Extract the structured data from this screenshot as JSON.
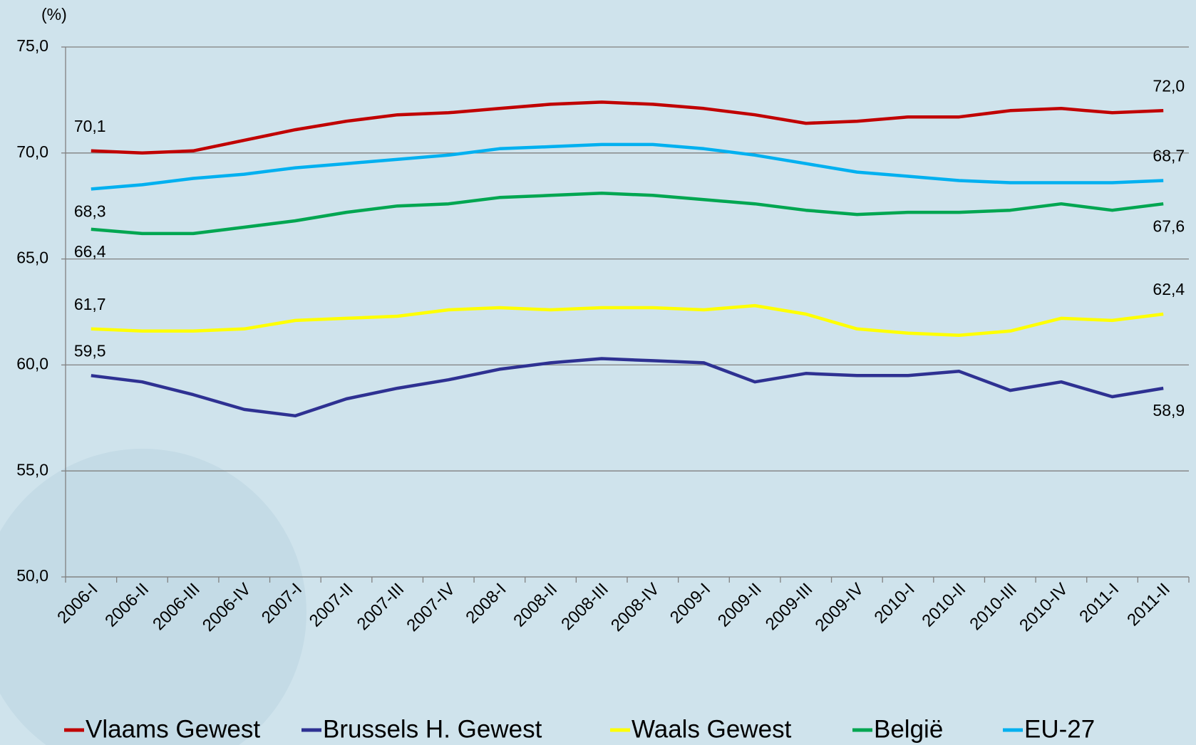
{
  "chart_data": {
    "type": "line",
    "y_unit_label": "(%)",
    "categories": [
      "2006-I",
      "2006-II",
      "2006-III",
      "2006-IV",
      "2007-I",
      "2007-II",
      "2007-III",
      "2007-IV",
      "2008-I",
      "2008-II",
      "2008-III",
      "2008-IV",
      "2009-I",
      "2009-II",
      "2009-III",
      "2009-IV",
      "2010-I",
      "2010-II",
      "2010-III",
      "2010-IV",
      "2011-I",
      "2011-II"
    ],
    "series": [
      {
        "name": "Vlaams Gewest",
        "color": "#c00000",
        "values": [
          70.1,
          70.0,
          70.1,
          70.6,
          71.1,
          71.5,
          71.8,
          71.9,
          72.1,
          72.3,
          72.4,
          72.3,
          72.1,
          71.8,
          71.4,
          71.5,
          71.7,
          71.7,
          72.0,
          72.1,
          71.9,
          72.0
        ],
        "value_labels": [
          "70,1",
          null,
          null,
          null,
          null,
          null,
          null,
          null,
          null,
          null,
          null,
          null,
          null,
          null,
          null,
          null,
          null,
          null,
          null,
          null,
          null,
          "72,0"
        ]
      },
      {
        "name": "Brussels H. Gewest",
        "color": "#2e3192",
        "values": [
          59.5,
          59.2,
          58.6,
          57.9,
          57.6,
          58.4,
          58.9,
          59.3,
          59.8,
          60.1,
          60.3,
          60.2,
          60.1,
          59.2,
          59.6,
          59.5,
          59.5,
          59.7,
          58.8,
          59.2,
          58.5,
          58.9
        ],
        "value_labels": [
          "59,5",
          null,
          null,
          null,
          null,
          null,
          null,
          null,
          null,
          null,
          null,
          null,
          null,
          null,
          null,
          null,
          null,
          null,
          null,
          null,
          null,
          "58,9"
        ]
      },
      {
        "name": "Waals Gewest",
        "color": "#ffff00",
        "values": [
          61.7,
          61.6,
          61.6,
          61.7,
          62.1,
          62.2,
          62.3,
          62.6,
          62.7,
          62.6,
          62.7,
          62.7,
          62.6,
          62.8,
          62.4,
          61.7,
          61.5,
          61.4,
          61.6,
          62.2,
          62.1,
          62.4
        ],
        "value_labels": [
          "61,7",
          null,
          null,
          null,
          null,
          null,
          null,
          null,
          null,
          null,
          null,
          null,
          null,
          null,
          null,
          null,
          null,
          null,
          null,
          null,
          null,
          "62,4"
        ]
      },
      {
        "name": "België",
        "color": "#00a651",
        "values": [
          66.4,
          66.2,
          66.2,
          66.5,
          66.8,
          67.2,
          67.5,
          67.6,
          67.9,
          68.0,
          68.1,
          68.0,
          67.8,
          67.6,
          67.3,
          67.1,
          67.2,
          67.2,
          67.3,
          67.6,
          67.3,
          67.6
        ],
        "value_labels": [
          "66,4",
          null,
          null,
          null,
          null,
          null,
          null,
          null,
          null,
          null,
          null,
          null,
          null,
          null,
          null,
          null,
          null,
          null,
          null,
          null,
          null,
          "67,6"
        ]
      },
      {
        "name": "EU-27",
        "color": "#00b0f0",
        "values": [
          68.3,
          68.5,
          68.8,
          69.0,
          69.3,
          69.5,
          69.7,
          69.9,
          70.2,
          70.3,
          70.4,
          70.4,
          70.2,
          69.9,
          69.5,
          69.1,
          68.9,
          68.7,
          68.6,
          68.6,
          68.6,
          68.7
        ],
        "value_labels": [
          "68,3",
          null,
          null,
          null,
          null,
          null,
          null,
          null,
          null,
          null,
          null,
          null,
          null,
          null,
          null,
          null,
          null,
          null,
          null,
          null,
          null,
          "68,7"
        ]
      }
    ],
    "ylim": [
      50,
      75
    ],
    "yticks": [
      {
        "value": 50,
        "label": "50,0"
      },
      {
        "value": 55,
        "label": "55,0"
      },
      {
        "value": 60,
        "label": "60,0"
      },
      {
        "value": 65,
        "label": "65,0"
      },
      {
        "value": 70,
        "label": "70,0"
      },
      {
        "value": 75,
        "label": "75,0"
      }
    ],
    "grid": true
  }
}
